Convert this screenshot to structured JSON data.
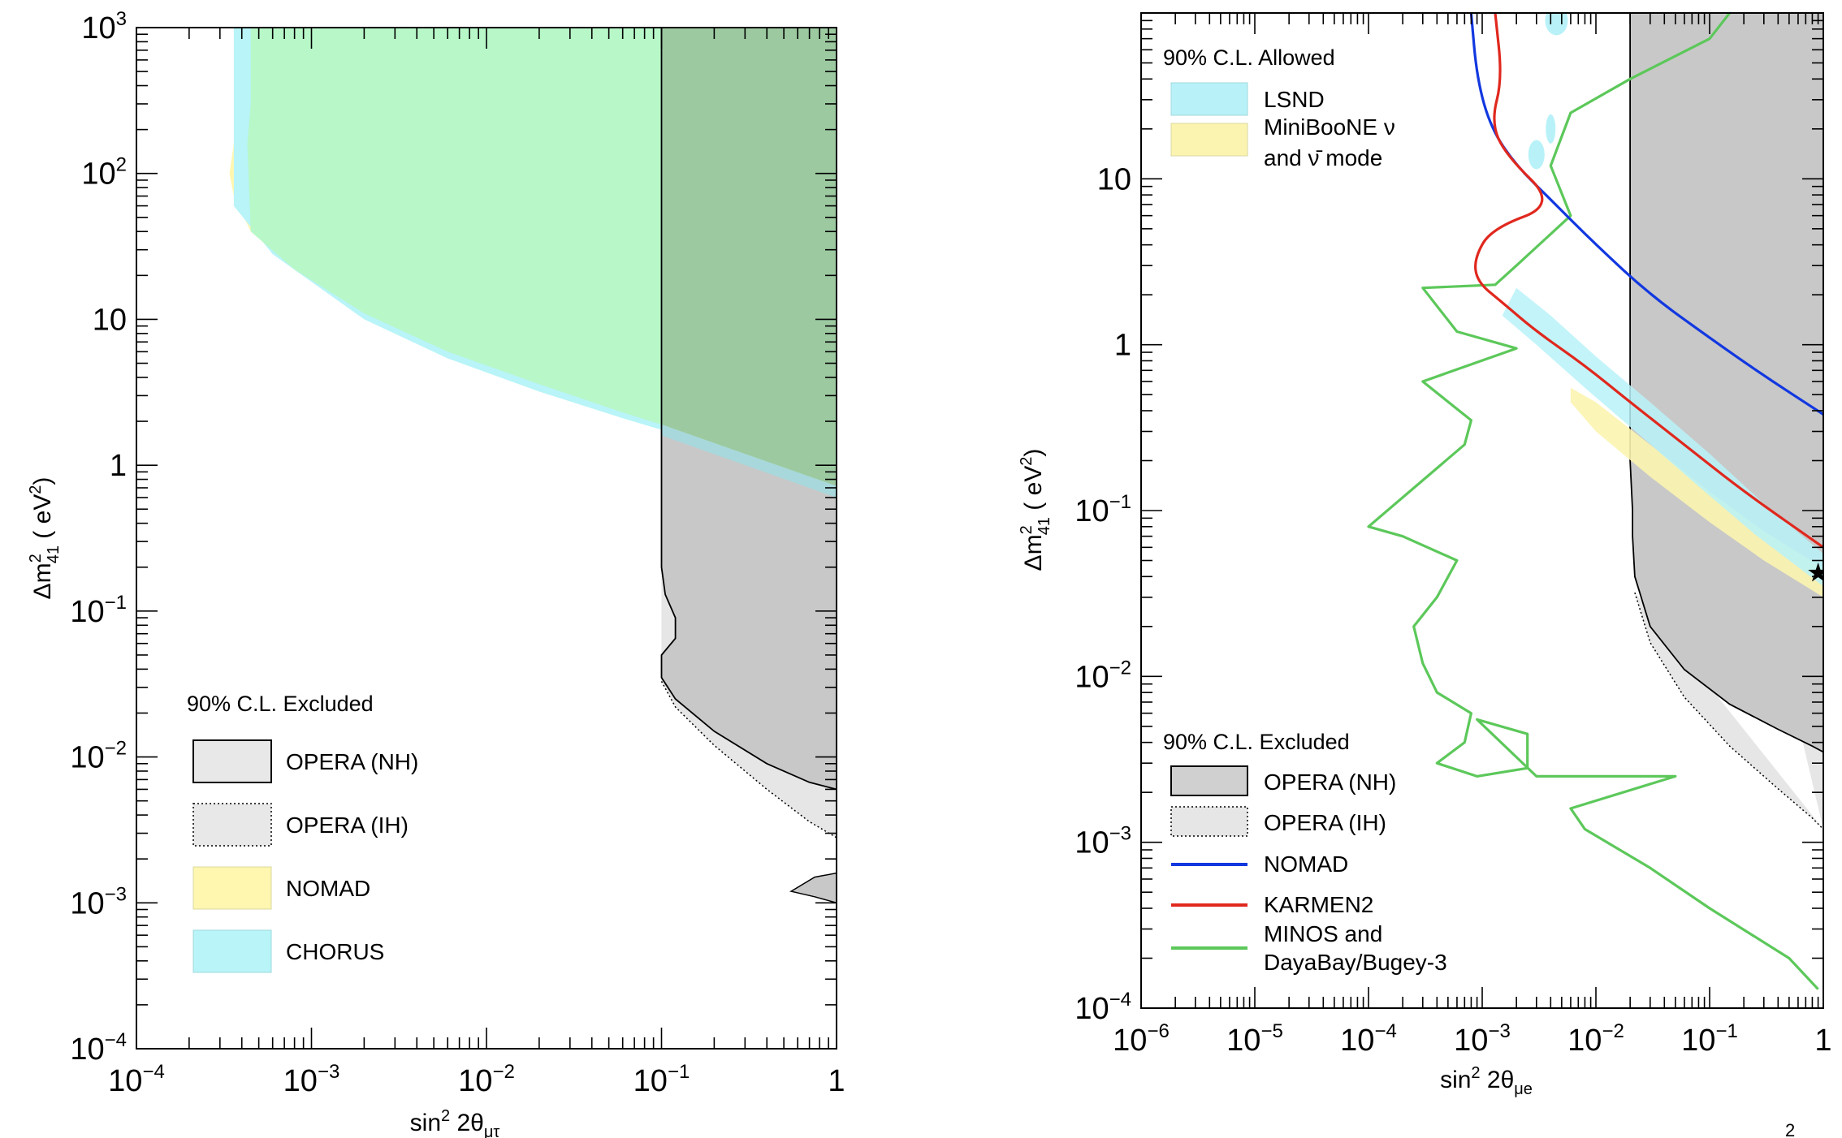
{
  "colors": {
    "opera_nh": "#c8c8c8",
    "opera_ih": "#e6e6e6",
    "nomad_band": "#fff6b0",
    "chorus_band": "#b8f4f8",
    "nomad_chorus_overlap": "#b8f7c8",
    "lsnd": "#b8f2f8",
    "miniboone": "#fbf4b0",
    "nomad_line": "#1238e0",
    "karmen_line": "#e0281e",
    "minos_line": "#5cc85a",
    "frame": "#000000"
  },
  "chart_data": [
    {
      "type": "area",
      "panel": "left",
      "xlabel": "sin² 2θ_μτ",
      "ylabel": "Δm²_41 (eV²)",
      "xscale": "log",
      "yscale": "log",
      "xlim": [
        0.0001,
        1
      ],
      "ylim": [
        0.0001,
        1000
      ],
      "x_ticks": [
        {
          "base": "10",
          "exp": "−4",
          "v": -4
        },
        {
          "base": "10",
          "exp": "−3",
          "v": -3
        },
        {
          "base": "10",
          "exp": "−2",
          "v": -2
        },
        {
          "base": "10",
          "exp": "−1",
          "v": -1
        },
        {
          "base": "1",
          "exp": "",
          "v": 0
        }
      ],
      "y_ticks": [
        {
          "base": "10",
          "exp": "−4",
          "v": -4
        },
        {
          "base": "10",
          "exp": "−3",
          "v": -3
        },
        {
          "base": "10",
          "exp": "−2",
          "v": -2
        },
        {
          "base": "10",
          "exp": "−1",
          "v": -1
        },
        {
          "base": "1",
          "exp": "",
          "v": 0
        },
        {
          "base": "10",
          "exp": "",
          "v": 1
        },
        {
          "base": "10",
          "exp": "2",
          "v": 2
        },
        {
          "base": "10",
          "exp": "3",
          "v": 3
        }
      ],
      "legend_title": "90% C.L. Excluded",
      "legend": [
        "OPERA (NH)",
        "OPERA (IH)",
        "NOMAD",
        "CHORUS"
      ],
      "series": [
        {
          "name": "NOMAD",
          "kind": "band",
          "x": [
            0.00045,
            0.00045,
            0.0004,
            0.00036,
            0.00034,
            0.00036,
            0.00045,
            0.0008,
            0.002,
            0.006,
            0.02,
            0.06,
            0.1,
            0.2,
            0.5,
            1
          ],
          "y": [
            1000,
            300,
            230,
            160,
            100,
            70,
            40,
            22,
            11,
            6.0,
            3.6,
            2.3,
            1.9,
            1.4,
            0.95,
            0.72
          ]
        },
        {
          "name": "CHORUS",
          "kind": "band",
          "x": [
            0.00036,
            0.0006,
            0.002,
            0.006,
            0.02,
            0.06,
            0.1,
            0.2,
            0.5,
            1
          ],
          "y": [
            60,
            28,
            10,
            5.4,
            3.2,
            2.1,
            1.75,
            1.3,
            0.85,
            0.62
          ]
        },
        {
          "name": "OPERA (NH)",
          "kind": "region",
          "x": [
            0.1,
            0.1,
            0.1,
            0.105,
            0.12,
            0.12,
            0.1,
            0.1,
            0.12,
            0.2,
            0.4,
            0.7,
            1
          ],
          "y": [
            1000,
            1,
            0.2,
            0.13,
            0.09,
            0.065,
            0.05,
            0.035,
            0.025,
            0.015,
            0.009,
            0.0067,
            0.006
          ]
        },
        {
          "name": "OPERA (IH)",
          "kind": "region",
          "x": [
            0.1,
            0.12,
            0.2,
            0.4,
            0.7,
            1
          ],
          "y": [
            0.033,
            0.022,
            0.012,
            0.006,
            0.0036,
            0.0028
          ]
        },
        {
          "name": "OPERA (NH) island",
          "kind": "region",
          "x": [
            0.55,
            0.75,
            1,
            1,
            0.75,
            0.55
          ],
          "y": [
            0.0012,
            0.0015,
            0.0016,
            0.001,
            0.0011,
            0.0012
          ]
        }
      ]
    },
    {
      "type": "line",
      "panel": "right",
      "xlabel": "sin² 2θ_μe",
      "ylabel": "Δm²_41 (eV²)",
      "xscale": "log",
      "yscale": "log",
      "xlim": [
        1e-06,
        1
      ],
      "ylim": [
        0.0001,
        100
      ],
      "x_ticks": [
        {
          "base": "10",
          "exp": "−6",
          "v": -6
        },
        {
          "base": "10",
          "exp": "−5",
          "v": -5
        },
        {
          "base": "10",
          "exp": "−4",
          "v": -4
        },
        {
          "base": "10",
          "exp": "−3",
          "v": -3
        },
        {
          "base": "10",
          "exp": "−2",
          "v": -2
        },
        {
          "base": "10",
          "exp": "−1",
          "v": -1
        },
        {
          "base": "1",
          "exp": "",
          "v": 0
        }
      ],
      "y_ticks": [
        {
          "base": "10",
          "exp": "−4",
          "v": -4
        },
        {
          "base": "10",
          "exp": "−3",
          "v": -3
        },
        {
          "base": "10",
          "exp": "−2",
          "v": -2
        },
        {
          "base": "10",
          "exp": "−1",
          "v": -1
        },
        {
          "base": "1",
          "exp": "",
          "v": 0
        },
        {
          "base": "10",
          "exp": "",
          "v": 1
        }
      ],
      "legend_allowed_title": "90% C.L. Allowed",
      "legend_allowed": [
        "LSND",
        "MiniBooNE ν",
        "and ν̄ mode"
      ],
      "legend_excluded_title": "90% C.L. Excluded",
      "legend_excluded": [
        "OPERA (NH)",
        "OPERA (IH)",
        "NOMAD",
        "KARMEN2",
        "MINOS and",
        "DayaBay/Bugey-3"
      ],
      "best_fit": {
        "x": 0.9,
        "y": 0.042
      },
      "series": [
        {
          "name": "NOMAD",
          "x": [
            0.0008,
            0.0009,
            0.0012,
            0.002,
            0.004,
            0.01,
            0.03,
            0.1,
            0.3,
            1
          ],
          "y": [
            100,
            40,
            20,
            12,
            7.5,
            4.0,
            2.0,
            1.1,
            0.65,
            0.38
          ]
        },
        {
          "name": "KARMEN2",
          "x": [
            0.0013,
            0.0015,
            0.0012,
            0.0016,
            0.0045,
            0.0012,
            0.00085,
            0.0009,
            0.0015,
            0.003,
            0.008,
            0.02,
            0.06,
            0.2,
            1
          ],
          "y": [
            100,
            40,
            22,
            14,
            7.0,
            5.0,
            3.3,
            2.4,
            1.8,
            1.2,
            0.75,
            0.45,
            0.25,
            0.13,
            0.06
          ]
        },
        {
          "name": "MINOS and DayaBay/Bugey-3",
          "x": [
            0.15,
            0.1,
            0.02,
            0.006,
            0.004,
            0.006,
            0.002,
            0.0013,
            0.0003,
            0.0006,
            0.002,
            0.0003,
            0.0008,
            0.0007,
            0.0001,
            0.0002,
            0.0006,
            0.0004,
            0.00025,
            0.0003,
            0.0004,
            0.0008,
            0.0007,
            0.0004,
            0.0009,
            0.0025,
            0.0025,
            0.0009,
            0.003,
            0.05,
            0.006,
            0.008,
            0.03,
            0.1,
            0.5,
            0.9
          ],
          "y": [
            100,
            70,
            40,
            25,
            12,
            6,
            3,
            2.3,
            2.2,
            1.2,
            0.95,
            0.6,
            0.35,
            0.25,
            0.08,
            0.07,
            0.05,
            0.03,
            0.02,
            0.012,
            0.008,
            0.006,
            0.004,
            0.003,
            0.0025,
            0.0028,
            0.0045,
            0.0055,
            0.0025,
            0.0025,
            0.0016,
            0.0012,
            0.0007,
            0.0004,
            0.0002,
            0.00013
          ]
        },
        {
          "name": "OPERA (NH)",
          "kind": "region",
          "x": [
            0.02,
            0.02,
            0.02,
            0.021,
            0.021,
            0.022,
            0.03,
            0.06,
            0.15,
            0.4,
            0.8,
            1
          ],
          "y": [
            100,
            1,
            0.2,
            0.1,
            0.07,
            0.04,
            0.02,
            0.011,
            0.0068,
            0.0048,
            0.0038,
            0.0035
          ]
        },
        {
          "name": "OPERA (IH)",
          "kind": "region",
          "x": [
            0.022,
            0.03,
            0.06,
            0.15,
            0.4,
            0.8,
            1
          ],
          "y": [
            0.032,
            0.016,
            0.0075,
            0.0038,
            0.0021,
            0.0014,
            0.0012
          ]
        },
        {
          "name": "LSND",
          "kind": "band",
          "upper_x": [
            0.002,
            0.004,
            0.01,
            0.03,
            0.1,
            0.3,
            1
          ],
          "upper_y": [
            2.2,
            1.5,
            0.85,
            0.45,
            0.22,
            0.11,
            0.055
          ],
          "lower_x": [
            0.0015,
            0.003,
            0.008,
            0.025,
            0.08,
            0.25,
            1
          ],
          "lower_y": [
            1.5,
            1.0,
            0.55,
            0.28,
            0.14,
            0.072,
            0.035
          ]
        },
        {
          "name": "MiniBooNE",
          "kind": "band",
          "upper_x": [
            0.006,
            0.01,
            0.03,
            0.1,
            0.3,
            1
          ],
          "upper_y": [
            0.55,
            0.45,
            0.25,
            0.13,
            0.075,
            0.045
          ],
          "lower_x": [
            0.006,
            0.01,
            0.03,
            0.1,
            0.3,
            1
          ],
          "lower_y": [
            0.45,
            0.3,
            0.16,
            0.085,
            0.05,
            0.03
          ]
        }
      ]
    }
  ],
  "corner_mark": "2"
}
